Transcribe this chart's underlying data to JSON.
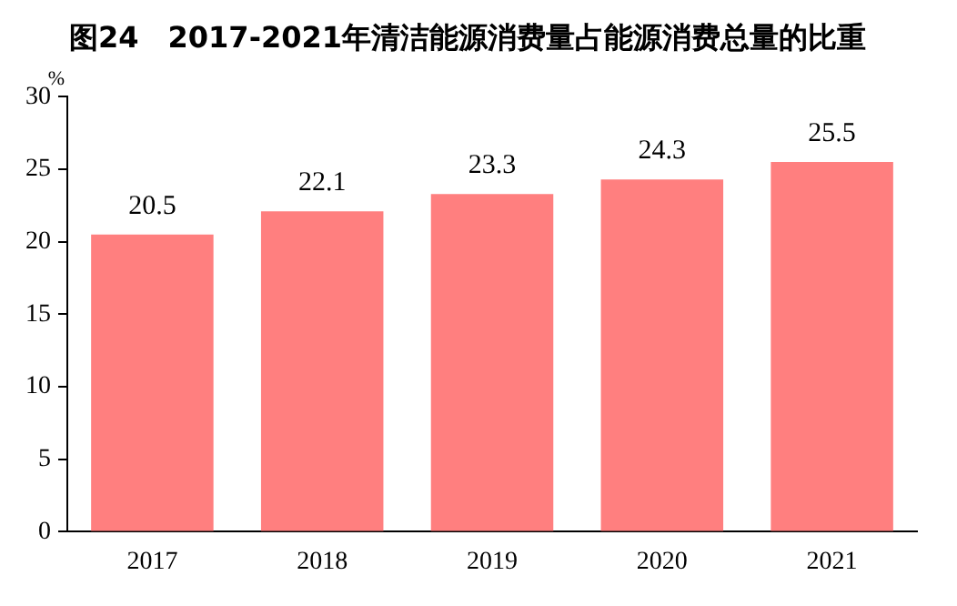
{
  "chart_data": {
    "type": "bar",
    "title": "图24　2017-2021年清洁能源消费量占能源消费总量的比重",
    "ylabel": "%",
    "categories": [
      "2017",
      "2018",
      "2019",
      "2020",
      "2021"
    ],
    "values": [
      20.5,
      22.1,
      23.3,
      24.3,
      25.5
    ],
    "color": "#ff7f7f",
    "ylim": [
      0,
      30
    ],
    "yticks": [
      0,
      5,
      10,
      15,
      20,
      25,
      30
    ],
    "data_labels": true
  }
}
